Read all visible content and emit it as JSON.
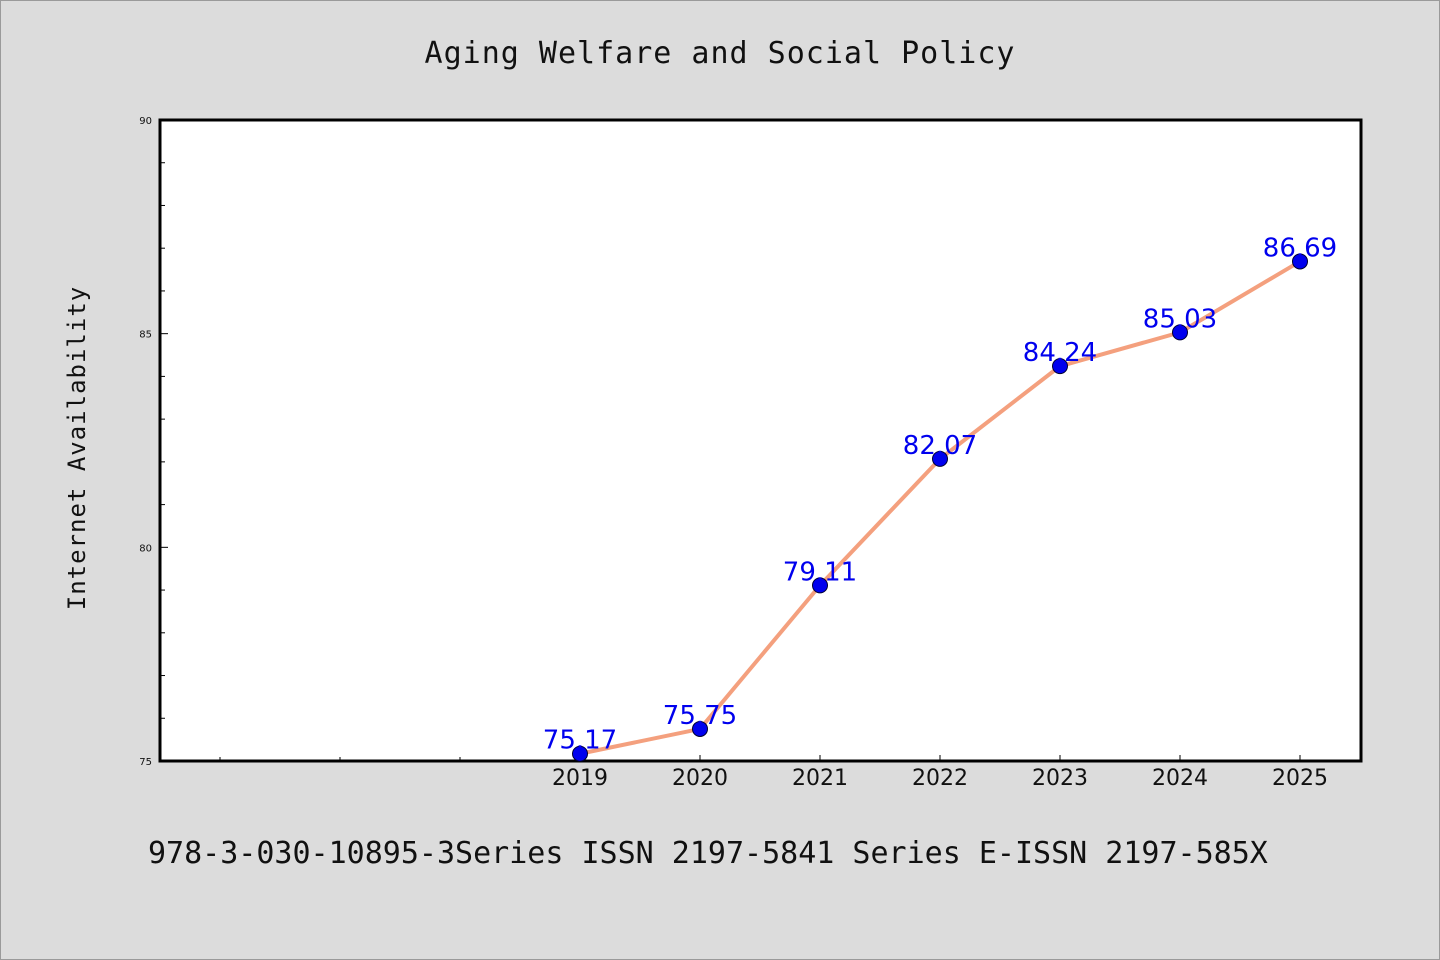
{
  "colors": {
    "background": "#dcdcdc",
    "plot_background": "#ffffff",
    "line": "#f4a07e",
    "marker": "#0000ee",
    "data_label": "#0000ee",
    "text": "#111111"
  },
  "footer": {
    "text": "978-3-030-10895-3Series ISSN 2197-5841 Series E-ISSN 2197-585X"
  },
  "chart_data": {
    "type": "line",
    "title": "Aging Welfare and Social Policy",
    "xlabel": "",
    "ylabel": "Internet Availability",
    "categories": [
      "2019",
      "2020",
      "2021",
      "2022",
      "2023",
      "2024",
      "2025"
    ],
    "series": [
      {
        "values": [
          75.17,
          75.75,
          79.11,
          82.07,
          84.24,
          85.03,
          86.69
        ],
        "data_labels": [
          "75.17",
          "75.75",
          "79.11",
          "82.07",
          "84.24",
          "85.03",
          "86.69"
        ]
      }
    ],
    "ylim": [
      75,
      90
    ],
    "yticks": [
      "75",
      "80",
      "85",
      "90"
    ],
    "grid": false,
    "legend": "none"
  }
}
